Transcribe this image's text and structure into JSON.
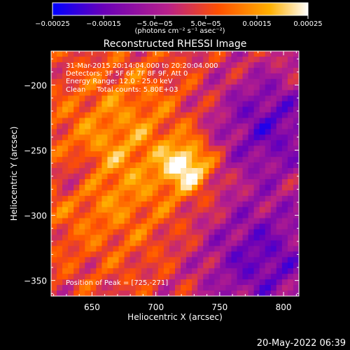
{
  "chart_data": {
    "type": "heatmap",
    "title": "Reconstructed RHESSI Image",
    "xlabel": "Heliocentric X (arcsec)",
    "ylabel": "Heliocentric Y (arcsec)",
    "xlim": [
      618,
      812
    ],
    "ylim": [
      -362,
      -174
    ],
    "x_ticks": [
      650,
      700,
      750,
      800
    ],
    "y_ticks": [
      -200,
      -250,
      -300,
      -350
    ],
    "colorbar": {
      "range": [
        -0.00025,
        0.00025
      ],
      "tick_values": [
        -0.00025,
        -0.00015,
        -5e-05,
        5e-05,
        0.00015,
        0.00025
      ],
      "tick_labels": [
        "-0.00025",
        "-0.00015",
        "-5.0e-05",
        "5.0e-05",
        "0.00015",
        "0.00025"
      ],
      "unit_label": "(photons cm⁻² s⁻¹ asec⁻²)",
      "colormap": [
        "#0000ff",
        "#6a00b8",
        "#b8208a",
        "#ff5000",
        "#ffb000",
        "#ffffff"
      ]
    },
    "annotations": [
      "31-Mar-2015 20:14:04.000 to 20:20:04.000",
      "Detectors: 3F 5F 6F 7F 8F 9F, Att 0",
      "Energy Range: 12.0 - 25.0 keV",
      "Clean     Total counts: 5.80E+03"
    ],
    "peak_label": "Position of Peak = [725,-271]",
    "peak": [
      725,
      -271
    ],
    "grid": false
  },
  "footer": {
    "date": "20-May-2022 06:39"
  }
}
